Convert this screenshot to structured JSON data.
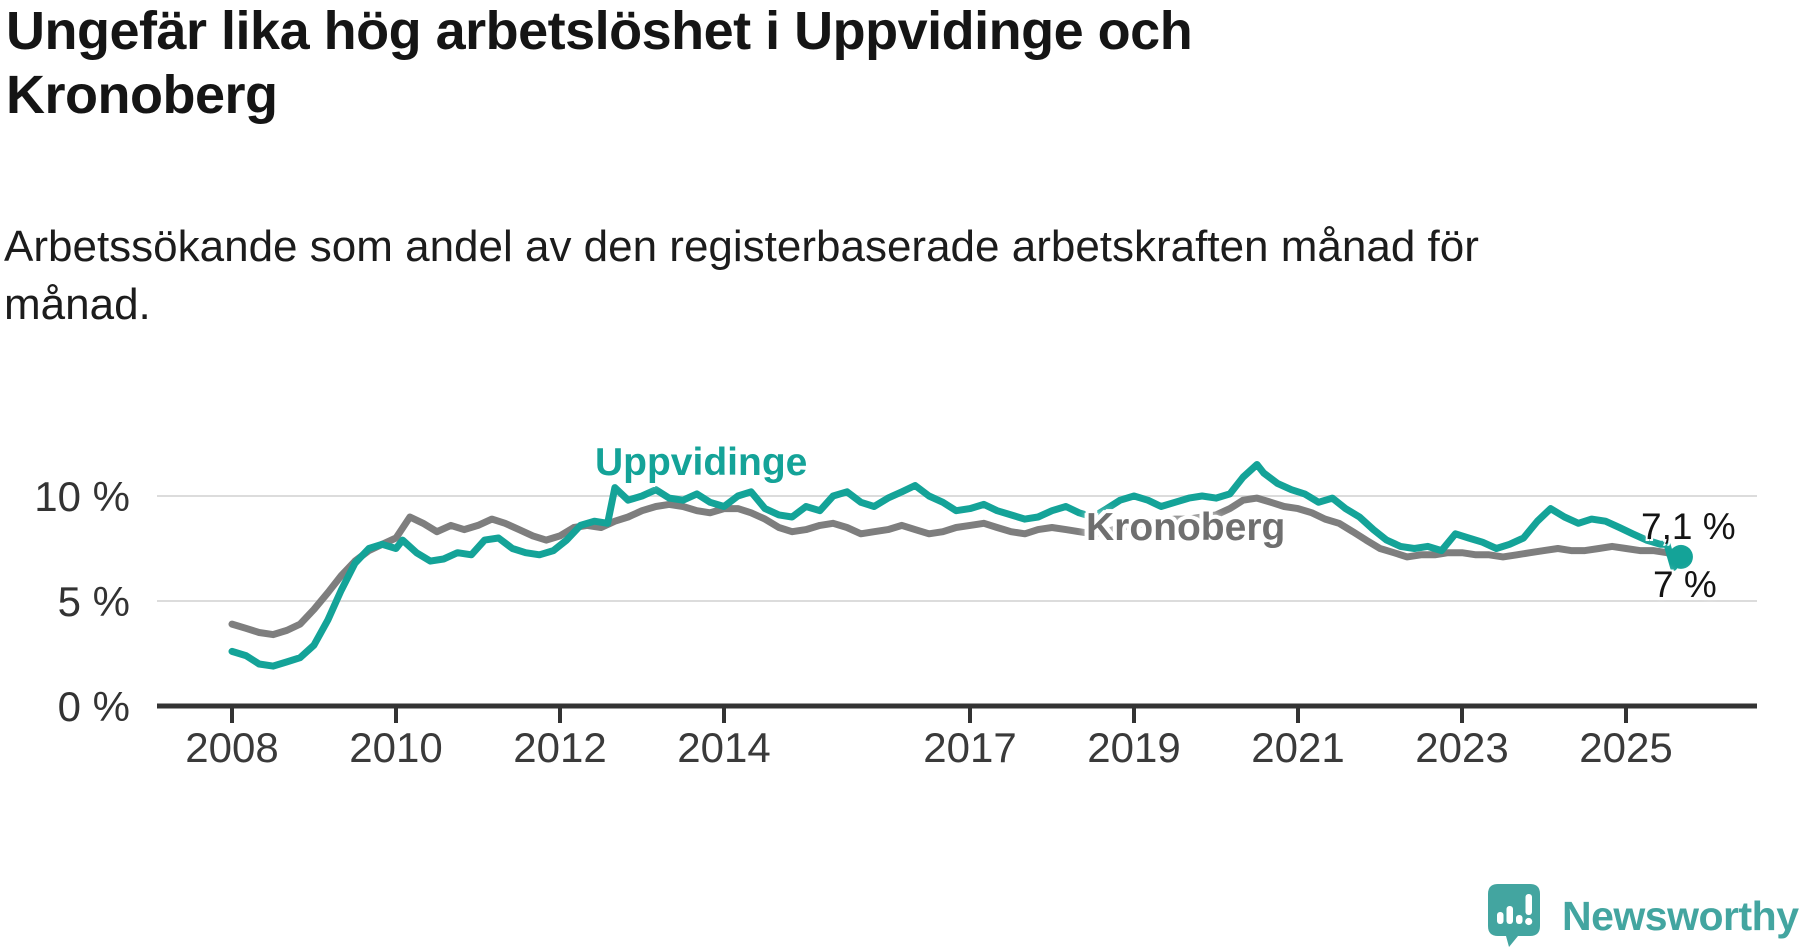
{
  "header": {
    "title": "Ungefär lika hög arbetslöshet i Uppvidinge och Kronoberg",
    "subtitle": "Arbetssökande som andel av den registerbaserade arbetskraften månad för månad."
  },
  "branding": {
    "logo_text": "Newsworthy",
    "logo_color": "#43a5a0",
    "logo_icon": "bar-chart-speech-bubble-icon"
  },
  "chart_data": {
    "type": "line",
    "title": "Ungefär lika hög arbetslöshet i Uppvidinge och Kronoberg",
    "xlabel": "",
    "ylabel": "",
    "x_unit": "decimal_year",
    "x_range": [
      2008,
      2025.9
    ],
    "y_range": [
      0,
      12
    ],
    "grid": "horizontal",
    "legend_position": "inline-labels",
    "x_ticks": [
      2008,
      2010,
      2012,
      2014,
      2017,
      2019,
      2021,
      2023,
      2025
    ],
    "y_ticks": [
      {
        "value": 0,
        "label": "0 %"
      },
      {
        "value": 5,
        "label": "5 %"
      },
      {
        "value": 10,
        "label": "10 %"
      }
    ],
    "axis_color": "#333333",
    "gridline_color": "#dcdcdc",
    "tick_label_color": "#3a3a3a",
    "series": [
      {
        "name": "Kronoberg",
        "color": "#7e7e7e",
        "label_color": "#6f6f6f",
        "end_label": "7 %",
        "end_value": 7.0,
        "end_dot": false,
        "points": [
          [
            2008,
            3.9
          ],
          [
            2008.17,
            3.7
          ],
          [
            2008.33,
            3.5
          ],
          [
            2008.5,
            3.4
          ],
          [
            2008.67,
            3.6
          ],
          [
            2008.83,
            3.9
          ],
          [
            2009,
            4.6
          ],
          [
            2009.17,
            5.4
          ],
          [
            2009.33,
            6.2
          ],
          [
            2009.5,
            6.9
          ],
          [
            2009.67,
            7.4
          ],
          [
            2009.83,
            7.7
          ],
          [
            2010,
            8.0
          ],
          [
            2010.17,
            9.0
          ],
          [
            2010.33,
            8.7
          ],
          [
            2010.5,
            8.3
          ],
          [
            2010.67,
            8.6
          ],
          [
            2010.83,
            8.4
          ],
          [
            2011,
            8.6
          ],
          [
            2011.17,
            8.9
          ],
          [
            2011.33,
            8.7
          ],
          [
            2011.5,
            8.4
          ],
          [
            2011.67,
            8.1
          ],
          [
            2011.83,
            7.9
          ],
          [
            2012,
            8.1
          ],
          [
            2012.17,
            8.5
          ],
          [
            2012.33,
            8.6
          ],
          [
            2012.5,
            8.5
          ],
          [
            2012.67,
            8.8
          ],
          [
            2012.83,
            9.0
          ],
          [
            2013,
            9.3
          ],
          [
            2013.17,
            9.5
          ],
          [
            2013.33,
            9.6
          ],
          [
            2013.5,
            9.5
          ],
          [
            2013.67,
            9.3
          ],
          [
            2013.83,
            9.2
          ],
          [
            2014,
            9.4
          ],
          [
            2014.17,
            9.4
          ],
          [
            2014.33,
            9.2
          ],
          [
            2014.5,
            8.9
          ],
          [
            2014.67,
            8.5
          ],
          [
            2014.83,
            8.3
          ],
          [
            2015,
            8.4
          ],
          [
            2015.17,
            8.6
          ],
          [
            2015.33,
            8.7
          ],
          [
            2015.5,
            8.5
          ],
          [
            2015.67,
            8.2
          ],
          [
            2015.83,
            8.3
          ],
          [
            2016,
            8.4
          ],
          [
            2016.17,
            8.6
          ],
          [
            2016.33,
            8.4
          ],
          [
            2016.5,
            8.2
          ],
          [
            2016.67,
            8.3
          ],
          [
            2016.83,
            8.5
          ],
          [
            2017,
            8.6
          ],
          [
            2017.17,
            8.7
          ],
          [
            2017.33,
            8.5
          ],
          [
            2017.5,
            8.3
          ],
          [
            2017.67,
            8.2
          ],
          [
            2017.83,
            8.4
          ],
          [
            2018,
            8.5
          ],
          [
            2018.17,
            8.4
          ],
          [
            2018.33,
            8.3
          ],
          [
            2018.5,
            8.2
          ],
          [
            2018.67,
            8.3
          ],
          [
            2018.83,
            8.5
          ],
          [
            2019,
            8.6
          ],
          [
            2019.17,
            8.7
          ],
          [
            2019.33,
            8.8
          ],
          [
            2019.5,
            8.9
          ],
          [
            2019.67,
            8.9
          ],
          [
            2019.83,
            9.0
          ],
          [
            2020,
            9.1
          ],
          [
            2020.17,
            9.4
          ],
          [
            2020.33,
            9.8
          ],
          [
            2020.5,
            9.9
          ],
          [
            2020.67,
            9.7
          ],
          [
            2020.83,
            9.5
          ],
          [
            2021,
            9.4
          ],
          [
            2021.17,
            9.2
          ],
          [
            2021.33,
            8.9
          ],
          [
            2021.5,
            8.7
          ],
          [
            2021.67,
            8.3
          ],
          [
            2021.83,
            7.9
          ],
          [
            2022,
            7.5
          ],
          [
            2022.17,
            7.3
          ],
          [
            2022.33,
            7.1
          ],
          [
            2022.5,
            7.2
          ],
          [
            2022.67,
            7.2
          ],
          [
            2022.83,
            7.3
          ],
          [
            2023,
            7.3
          ],
          [
            2023.17,
            7.2
          ],
          [
            2023.33,
            7.2
          ],
          [
            2023.5,
            7.1
          ],
          [
            2023.67,
            7.2
          ],
          [
            2023.83,
            7.3
          ],
          [
            2024,
            7.4
          ],
          [
            2024.17,
            7.5
          ],
          [
            2024.33,
            7.4
          ],
          [
            2024.5,
            7.4
          ],
          [
            2024.67,
            7.5
          ],
          [
            2024.83,
            7.6
          ],
          [
            2025,
            7.5
          ],
          [
            2025.17,
            7.4
          ],
          [
            2025.33,
            7.4
          ],
          [
            2025.5,
            7.3
          ],
          [
            2025.67,
            7.0
          ]
        ]
      },
      {
        "name": "Uppvidinge",
        "color": "#14a398",
        "label_color": "#14a398",
        "end_label": "7,1 %",
        "end_value": 7.1,
        "end_dot": true,
        "points": [
          [
            2008,
            2.6
          ],
          [
            2008.17,
            2.4
          ],
          [
            2008.33,
            2.0
          ],
          [
            2008.5,
            1.9
          ],
          [
            2008.67,
            2.1
          ],
          [
            2008.83,
            2.3
          ],
          [
            2009,
            2.9
          ],
          [
            2009.17,
            4.1
          ],
          [
            2009.33,
            5.5
          ],
          [
            2009.5,
            6.8
          ],
          [
            2009.67,
            7.5
          ],
          [
            2009.83,
            7.7
          ],
          [
            2010,
            7.5
          ],
          [
            2010.08,
            7.9
          ],
          [
            2010.25,
            7.3
          ],
          [
            2010.42,
            6.9
          ],
          [
            2010.58,
            7.0
          ],
          [
            2010.75,
            7.3
          ],
          [
            2010.92,
            7.2
          ],
          [
            2011.08,
            7.9
          ],
          [
            2011.25,
            8.0
          ],
          [
            2011.42,
            7.5
          ],
          [
            2011.58,
            7.3
          ],
          [
            2011.75,
            7.2
          ],
          [
            2011.92,
            7.4
          ],
          [
            2012.08,
            7.9
          ],
          [
            2012.25,
            8.6
          ],
          [
            2012.42,
            8.8
          ],
          [
            2012.58,
            8.7
          ],
          [
            2012.67,
            10.4
          ],
          [
            2012.83,
            9.8
          ],
          [
            2013,
            10.0
          ],
          [
            2013.17,
            10.3
          ],
          [
            2013.33,
            9.9
          ],
          [
            2013.5,
            9.8
          ],
          [
            2013.67,
            10.1
          ],
          [
            2013.83,
            9.7
          ],
          [
            2014,
            9.5
          ],
          [
            2014.17,
            10.0
          ],
          [
            2014.33,
            10.2
          ],
          [
            2014.5,
            9.4
          ],
          [
            2014.67,
            9.1
          ],
          [
            2014.83,
            9.0
          ],
          [
            2015,
            9.5
          ],
          [
            2015.17,
            9.3
          ],
          [
            2015.33,
            10.0
          ],
          [
            2015.5,
            10.2
          ],
          [
            2015.67,
            9.7
          ],
          [
            2015.83,
            9.5
          ],
          [
            2016,
            9.9
          ],
          [
            2016.17,
            10.2
          ],
          [
            2016.33,
            10.5
          ],
          [
            2016.5,
            10.0
          ],
          [
            2016.67,
            9.7
          ],
          [
            2016.83,
            9.3
          ],
          [
            2017,
            9.4
          ],
          [
            2017.17,
            9.6
          ],
          [
            2017.33,
            9.3
          ],
          [
            2017.5,
            9.1
          ],
          [
            2017.67,
            8.9
          ],
          [
            2017.83,
            9.0
          ],
          [
            2018,
            9.3
          ],
          [
            2018.17,
            9.5
          ],
          [
            2018.33,
            9.2
          ],
          [
            2018.5,
            9.0
          ],
          [
            2018.67,
            9.4
          ],
          [
            2018.83,
            9.8
          ],
          [
            2019,
            10.0
          ],
          [
            2019.17,
            9.8
          ],
          [
            2019.33,
            9.5
          ],
          [
            2019.5,
            9.7
          ],
          [
            2019.67,
            9.9
          ],
          [
            2019.83,
            10.0
          ],
          [
            2020,
            9.9
          ],
          [
            2020.17,
            10.1
          ],
          [
            2020.33,
            10.9
          ],
          [
            2020.5,
            11.5
          ],
          [
            2020.58,
            11.1
          ],
          [
            2020.75,
            10.6
          ],
          [
            2020.92,
            10.3
          ],
          [
            2021.08,
            10.1
          ],
          [
            2021.25,
            9.7
          ],
          [
            2021.42,
            9.9
          ],
          [
            2021.58,
            9.4
          ],
          [
            2021.75,
            9.0
          ],
          [
            2021.92,
            8.4
          ],
          [
            2022.08,
            7.9
          ],
          [
            2022.25,
            7.6
          ],
          [
            2022.42,
            7.5
          ],
          [
            2022.58,
            7.6
          ],
          [
            2022.75,
            7.4
          ],
          [
            2022.92,
            8.2
          ],
          [
            2023.08,
            8.0
          ],
          [
            2023.25,
            7.8
          ],
          [
            2023.42,
            7.5
          ],
          [
            2023.58,
            7.7
          ],
          [
            2023.75,
            8.0
          ],
          [
            2023.92,
            8.8
          ],
          [
            2024.08,
            9.4
          ],
          [
            2024.25,
            9.0
          ],
          [
            2024.42,
            8.7
          ],
          [
            2024.58,
            8.9
          ],
          [
            2024.75,
            8.8
          ],
          [
            2024.92,
            8.5
          ],
          [
            2025.08,
            8.2
          ],
          [
            2025.25,
            7.9
          ],
          [
            2025.42,
            7.7
          ],
          [
            2025.5,
            7.7
          ],
          [
            2025.58,
            6.6
          ],
          [
            2025.67,
            7.1
          ]
        ]
      }
    ]
  }
}
